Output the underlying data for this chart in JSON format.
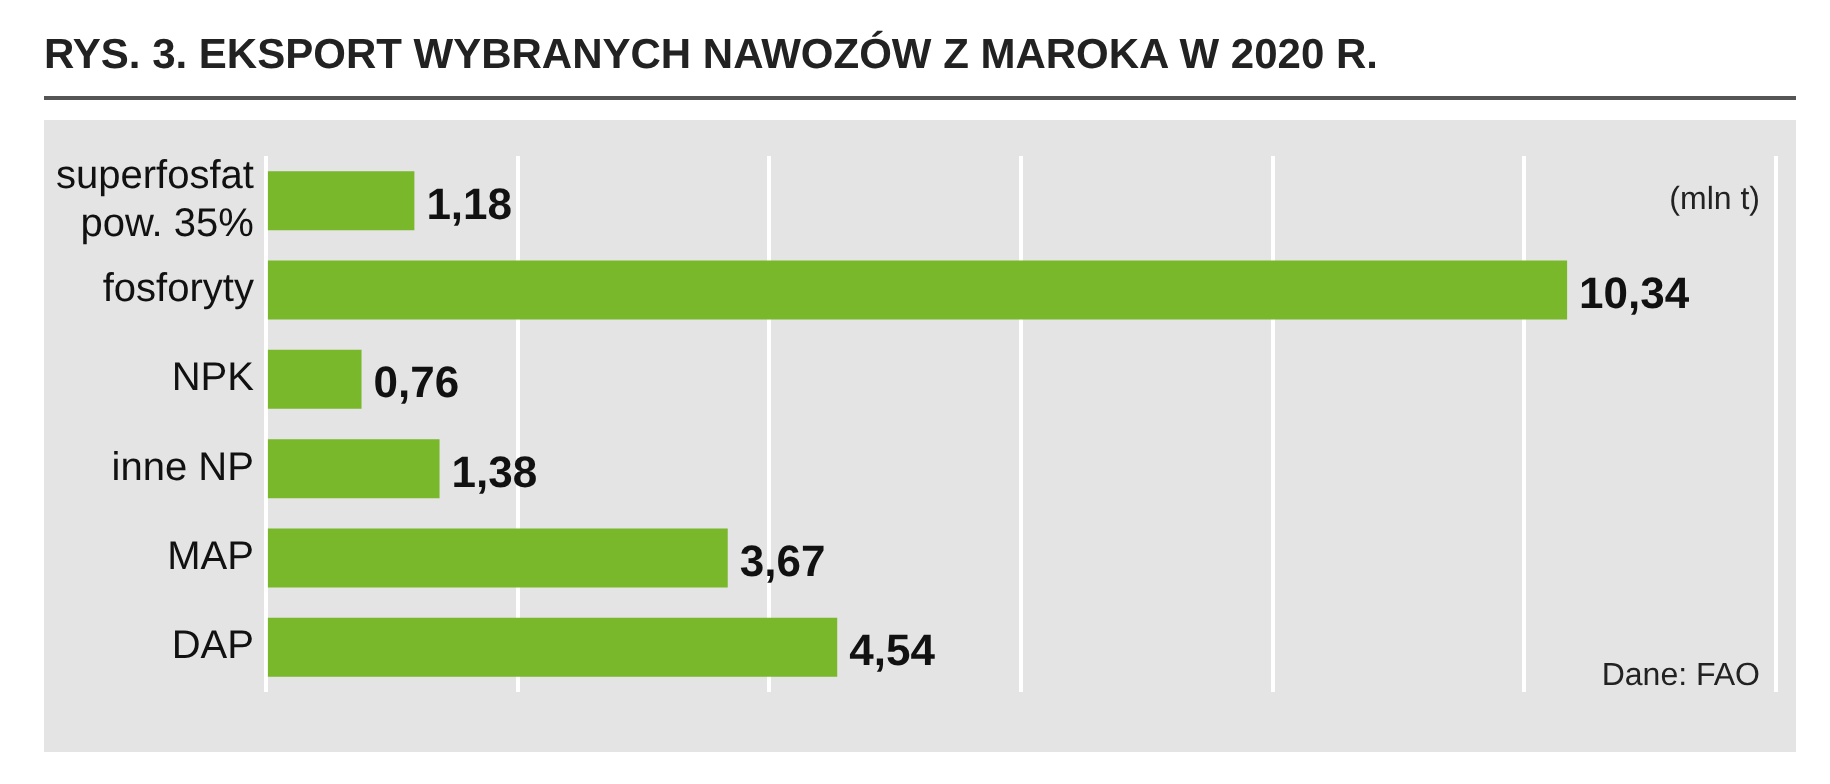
{
  "chart_data": {
    "type": "bar",
    "orientation": "horizontal",
    "title": "RYS. 3. EKSPORT WYBRANYCH NAWOZÓW Z MAROKA W 2020 R.",
    "categories": [
      "superfosfat\npow. 35%",
      "fosforyty",
      "NPK",
      "inne NP",
      "MAP",
      "DAP"
    ],
    "values": [
      1.18,
      10.34,
      0.76,
      1.38,
      3.67,
      4.54
    ],
    "value_labels": [
      "1,18",
      "10,34",
      "0,76",
      "1,38",
      "3,67",
      "4,54"
    ],
    "color": "#78b82a",
    "xlim": [
      0,
      12
    ],
    "xticks": [
      {
        "value": 0,
        "label": null
      },
      {
        "value": 2,
        "label": null
      },
      {
        "value": 4,
        "label": null
      },
      {
        "value": 6,
        "label": null
      },
      {
        "value": 8,
        "label": null
      },
      {
        "value": 10,
        "label": null
      },
      {
        "value": 12,
        "label": null
      }
    ],
    "grid": "x",
    "tick_labels": "y",
    "legend": false,
    "annotations": [
      "(mln t)",
      "Dane: FAO"
    ]
  }
}
